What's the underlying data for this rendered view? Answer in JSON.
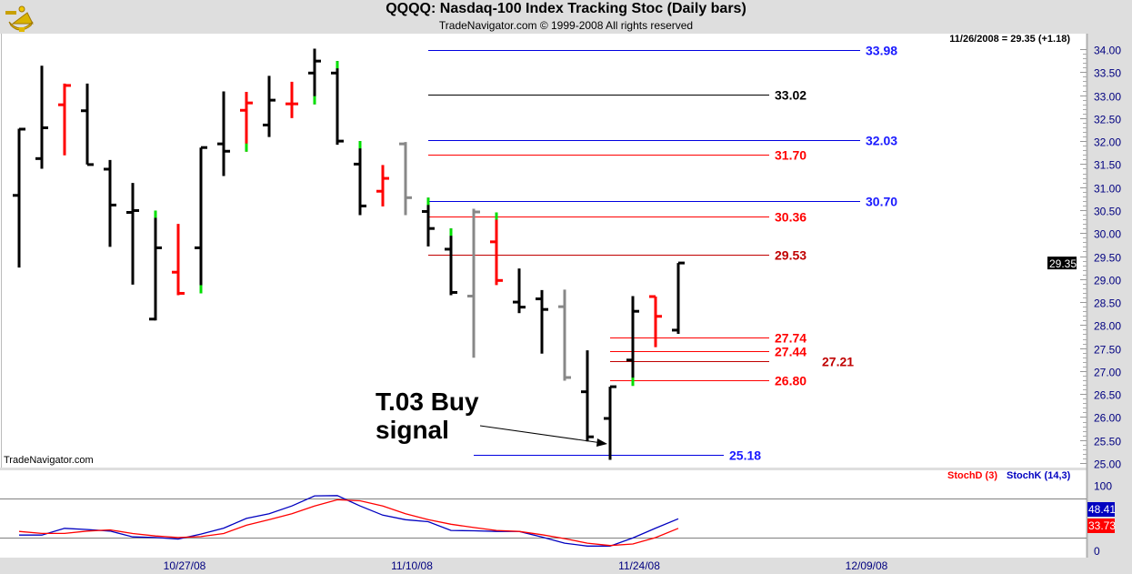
{
  "header": {
    "title": "QQQQ:  Nasdaq-100 Index Tracking Stoc  (Daily bars)",
    "subtitle": "TradeNavigator.com © 1999-2008 All rights reserved",
    "last_quote": "11/26/2008 = 29.35 (+1.18)",
    "logo_icon": "sextant-icon"
  },
  "watermark": "TradeNavigator.com",
  "annotation": {
    "line1": "T.03 Buy",
    "line2": "signal"
  },
  "chart_data": [
    {
      "type": "ohlc",
      "title": "QQQQ Daily bars",
      "ylim": [
        25.0,
        34.0
      ],
      "y_ticks": [
        "34.00",
        "33.50",
        "33.00",
        "32.50",
        "32.00",
        "31.50",
        "31.00",
        "30.50",
        "30.00",
        "29.50",
        "29.00",
        "28.50",
        "28.00",
        "27.50",
        "27.00",
        "26.50",
        "26.00",
        "25.50",
        "25.00"
      ],
      "x_ticks": [
        {
          "bar": 7,
          "label": "10/27/08"
        },
        {
          "bar": 17,
          "label": "11/10/08"
        },
        {
          "bar": 27,
          "label": "11/24/08"
        },
        {
          "bar": 37,
          "label": "12/09/08"
        }
      ],
      "last_price_tag": "29.35",
      "colors": {
        "black": "#000000",
        "red": "#ff0000",
        "gray": "#888888",
        "marker": "#00e000"
      },
      "bars": [
        {
          "o": 30.82,
          "h": 32.27,
          "l": 29.25,
          "c": 32.26,
          "color": "black"
        },
        {
          "o": 31.62,
          "h": 33.64,
          "l": 31.4,
          "c": 32.29,
          "color": "black"
        },
        {
          "o": 32.79,
          "h": 33.25,
          "l": 31.69,
          "c": 33.21,
          "color": "red"
        },
        {
          "o": 32.66,
          "h": 33.25,
          "l": 31.49,
          "c": 31.49,
          "color": "black"
        },
        {
          "o": 31.39,
          "h": 31.59,
          "l": 29.7,
          "c": 30.61,
          "color": "black"
        },
        {
          "o": 30.45,
          "h": 31.09,
          "l": 28.88,
          "c": 30.49,
          "color": "black"
        },
        {
          "o": 28.13,
          "h": 30.49,
          "l": 28.1,
          "c": 29.68,
          "color": "black",
          "marker": "top"
        },
        {
          "o": 29.15,
          "h": 30.2,
          "l": 28.65,
          "c": 28.69,
          "color": "red"
        },
        {
          "o": 29.68,
          "h": 31.86,
          "l": 28.69,
          "c": 31.86,
          "color": "black",
          "marker": "bottom"
        },
        {
          "o": 31.94,
          "h": 33.08,
          "l": 31.24,
          "c": 31.78,
          "color": "black"
        },
        {
          "o": 32.67,
          "h": 33.07,
          "l": 31.77,
          "c": 32.83,
          "color": "red",
          "marker": "bottom"
        },
        {
          "o": 32.35,
          "h": 33.42,
          "l": 32.09,
          "c": 32.89,
          "color": "black"
        },
        {
          "o": 32.81,
          "h": 33.29,
          "l": 32.5,
          "c": 32.81,
          "color": "red"
        },
        {
          "o": 33.48,
          "h": 34.01,
          "l": 32.8,
          "c": 33.74,
          "color": "black",
          "marker": "bottom"
        },
        {
          "o": 33.48,
          "h": 33.74,
          "l": 31.92,
          "c": 32.0,
          "color": "black",
          "marker": "top"
        },
        {
          "o": 31.5,
          "h": 32.0,
          "l": 30.39,
          "c": 30.59,
          "color": "black",
          "marker": "top"
        },
        {
          "o": 30.91,
          "h": 31.48,
          "l": 30.58,
          "c": 31.19,
          "color": "red"
        },
        {
          "o": 31.94,
          "h": 31.98,
          "l": 30.39,
          "c": 30.77,
          "color": "gray"
        },
        {
          "o": 30.47,
          "h": 30.77,
          "l": 29.71,
          "c": 30.1,
          "color": "black",
          "marker": "top"
        },
        {
          "o": 29.65,
          "h": 30.1,
          "l": 28.65,
          "c": 28.71,
          "color": "black",
          "marker": "top"
        },
        {
          "o": 28.63,
          "h": 30.53,
          "l": 27.29,
          "c": 30.46,
          "color": "gray"
        },
        {
          "o": 29.81,
          "h": 30.45,
          "l": 28.87,
          "c": 28.97,
          "color": "red",
          "marker": "top"
        },
        {
          "o": 28.5,
          "h": 29.23,
          "l": 28.26,
          "c": 28.39,
          "color": "black"
        },
        {
          "o": 28.57,
          "h": 28.76,
          "l": 27.38,
          "c": 28.34,
          "color": "black"
        },
        {
          "o": 28.4,
          "h": 28.77,
          "l": 26.79,
          "c": 26.86,
          "color": "gray"
        },
        {
          "o": 26.55,
          "h": 27.45,
          "l": 25.47,
          "c": 25.57,
          "color": "black"
        },
        {
          "o": 25.97,
          "h": 26.66,
          "l": 25.07,
          "c": 26.66,
          "color": "black"
        },
        {
          "o": 27.24,
          "h": 28.63,
          "l": 26.68,
          "c": 28.3,
          "color": "black",
          "marker": "bottom"
        },
        {
          "o": 28.62,
          "h": 28.62,
          "l": 27.52,
          "c": 28.19,
          "color": "red"
        },
        {
          "o": 27.89,
          "h": 29.35,
          "l": 27.81,
          "c": 29.35,
          "color": "black"
        }
      ],
      "levels": [
        {
          "value": 33.98,
          "label": "33.98",
          "line_color": "#0000e0",
          "label_color": "#1a1aff",
          "from_bar": 18,
          "to_bar": 37
        },
        {
          "value": 33.02,
          "label": "33.02",
          "line_color": "#000000",
          "label_color": "#000000",
          "from_bar": 18,
          "to_bar": 33
        },
        {
          "value": 32.03,
          "label": "32.03",
          "line_color": "#0000e0",
          "label_color": "#1a1aff",
          "from_bar": 18,
          "to_bar": 37
        },
        {
          "value": 31.7,
          "label": "31.70",
          "line_color": "#ff0000",
          "label_color": "#ff0000",
          "from_bar": 18,
          "to_bar": 33
        },
        {
          "value": 30.7,
          "label": "30.70",
          "line_color": "#0000e0",
          "label_color": "#1a1aff",
          "from_bar": 18,
          "to_bar": 37
        },
        {
          "value": 30.36,
          "label": "30.36",
          "line_color": "#ff0000",
          "label_color": "#ff0000",
          "from_bar": 18,
          "to_bar": 33
        },
        {
          "value": 29.53,
          "label": "29.53",
          "line_color": "#c00000",
          "label_color": "#c00000",
          "from_bar": 18,
          "to_bar": 33
        },
        {
          "value": 27.74,
          "label": "27.74",
          "line_color": "#ff0000",
          "label_color": "#ff0000",
          "from_bar": 26,
          "to_bar": 33
        },
        {
          "value": 27.44,
          "label": "27.44",
          "line_color": "#ff0000",
          "label_color": "#ff0000",
          "from_bar": 26,
          "to_bar": 33
        },
        {
          "value": 27.21,
          "label": "27.21",
          "line_color": "#c00000",
          "label_color": "#c00000",
          "from_bar": 26,
          "to_bar": 33
        },
        {
          "value": 26.8,
          "label": "26.80",
          "line_color": "#ff0000",
          "label_color": "#ff0000",
          "from_bar": 26,
          "to_bar": 33
        },
        {
          "value": 25.18,
          "label": "25.18",
          "line_color": "#0000e0",
          "label_color": "#1a1aff",
          "from_bar": 20,
          "to_bar": 31
        }
      ]
    },
    {
      "type": "line",
      "title": "Stochastics",
      "ylim": [
        0,
        100
      ],
      "y_ticks": [
        "100",
        "0"
      ],
      "reference_lines": [
        80,
        20
      ],
      "legend": [
        {
          "name": "StochD (3)",
          "color": "#ff0000"
        },
        {
          "name": "StochK (14,3)",
          "color": "#0000c0"
        }
      ],
      "series": [
        {
          "name": "StochK (14,3)",
          "color": "#0000c0",
          "last_tag": "48.41",
          "values": [
            23.5,
            23.5,
            33.8,
            32,
            29.5,
            20.7,
            19.7,
            17.3,
            25,
            34,
            49,
            56,
            68,
            83.5,
            84,
            68,
            54,
            47,
            44,
            30.6,
            30,
            29,
            29,
            20.4,
            11,
            6.5,
            6.5,
            19,
            34,
            48.41
          ]
        },
        {
          "name": "StochD (3)",
          "color": "#ff0000",
          "last_tag": "33.73",
          "values": [
            29,
            26,
            26,
            29.5,
            31.4,
            25.8,
            22,
            19.7,
            21,
            25.8,
            38.5,
            47,
            56,
            68,
            77.5,
            76,
            68,
            56,
            47,
            40,
            35,
            30.6,
            29,
            24,
            18,
            11,
            7.4,
            9.7,
            19.5,
            33.73
          ]
        }
      ]
    }
  ]
}
